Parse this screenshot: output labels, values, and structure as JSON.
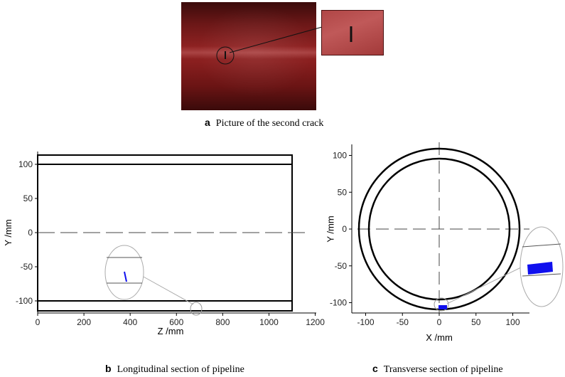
{
  "panel_a": {
    "label": "a",
    "caption": "Picture of the second crack"
  },
  "panel_b": {
    "label": "b",
    "caption": "Longitudinal section of pipeline",
    "xlabel": "Z /mm",
    "ylabel": "Y /mm",
    "xticks": [
      "0",
      "200",
      "400",
      "600",
      "800",
      "1000",
      "1200"
    ],
    "yticks": [
      "100",
      "50",
      "0",
      "-50",
      "-100"
    ]
  },
  "panel_c": {
    "label": "c",
    "caption": "Transverse section of pipeline",
    "xlabel": "X /mm",
    "ylabel": "Y /mm",
    "xticks": [
      "-100",
      "-50",
      "0",
      "50",
      "100"
    ],
    "yticks": [
      "100",
      "50",
      "0",
      "-50",
      "-100"
    ]
  },
  "chart_data": [
    {
      "type": "line",
      "panel": "b",
      "xlabel": "Z /mm",
      "ylabel": "Y /mm",
      "xlim": [
        0,
        1200
      ],
      "ylim": [
        -110,
        110
      ],
      "series": [
        {
          "x": [
            0,
            1100
          ],
          "y": [
            109,
            109
          ]
        },
        {
          "x": [
            0,
            1100
          ],
          "y": [
            96,
            96
          ]
        },
        {
          "x": [
            0,
            1100
          ],
          "y": [
            -96,
            -96
          ]
        },
        {
          "x": [
            0,
            1100
          ],
          "y": [
            -109,
            -109
          ]
        },
        {
          "x": [
            0,
            1100
          ],
          "y": [
            0,
            0
          ]
        }
      ],
      "crack": {
        "z": 690,
        "y": -105
      },
      "colors": {
        "outline": "#000000",
        "crack": "#1010ee"
      }
    },
    {
      "type": "line",
      "panel": "c",
      "xlabel": "X /mm",
      "ylabel": "Y /mm",
      "xlim": [
        -110,
        110
      ],
      "ylim": [
        -110,
        110
      ],
      "series": [
        {
          "shape": "circle",
          "radius": 109
        },
        {
          "shape": "circle",
          "radius": 96
        }
      ],
      "crack": {
        "x": 2,
        "y": -108
      },
      "colors": {
        "outline": "#000000",
        "crack": "#1010ee"
      }
    }
  ]
}
